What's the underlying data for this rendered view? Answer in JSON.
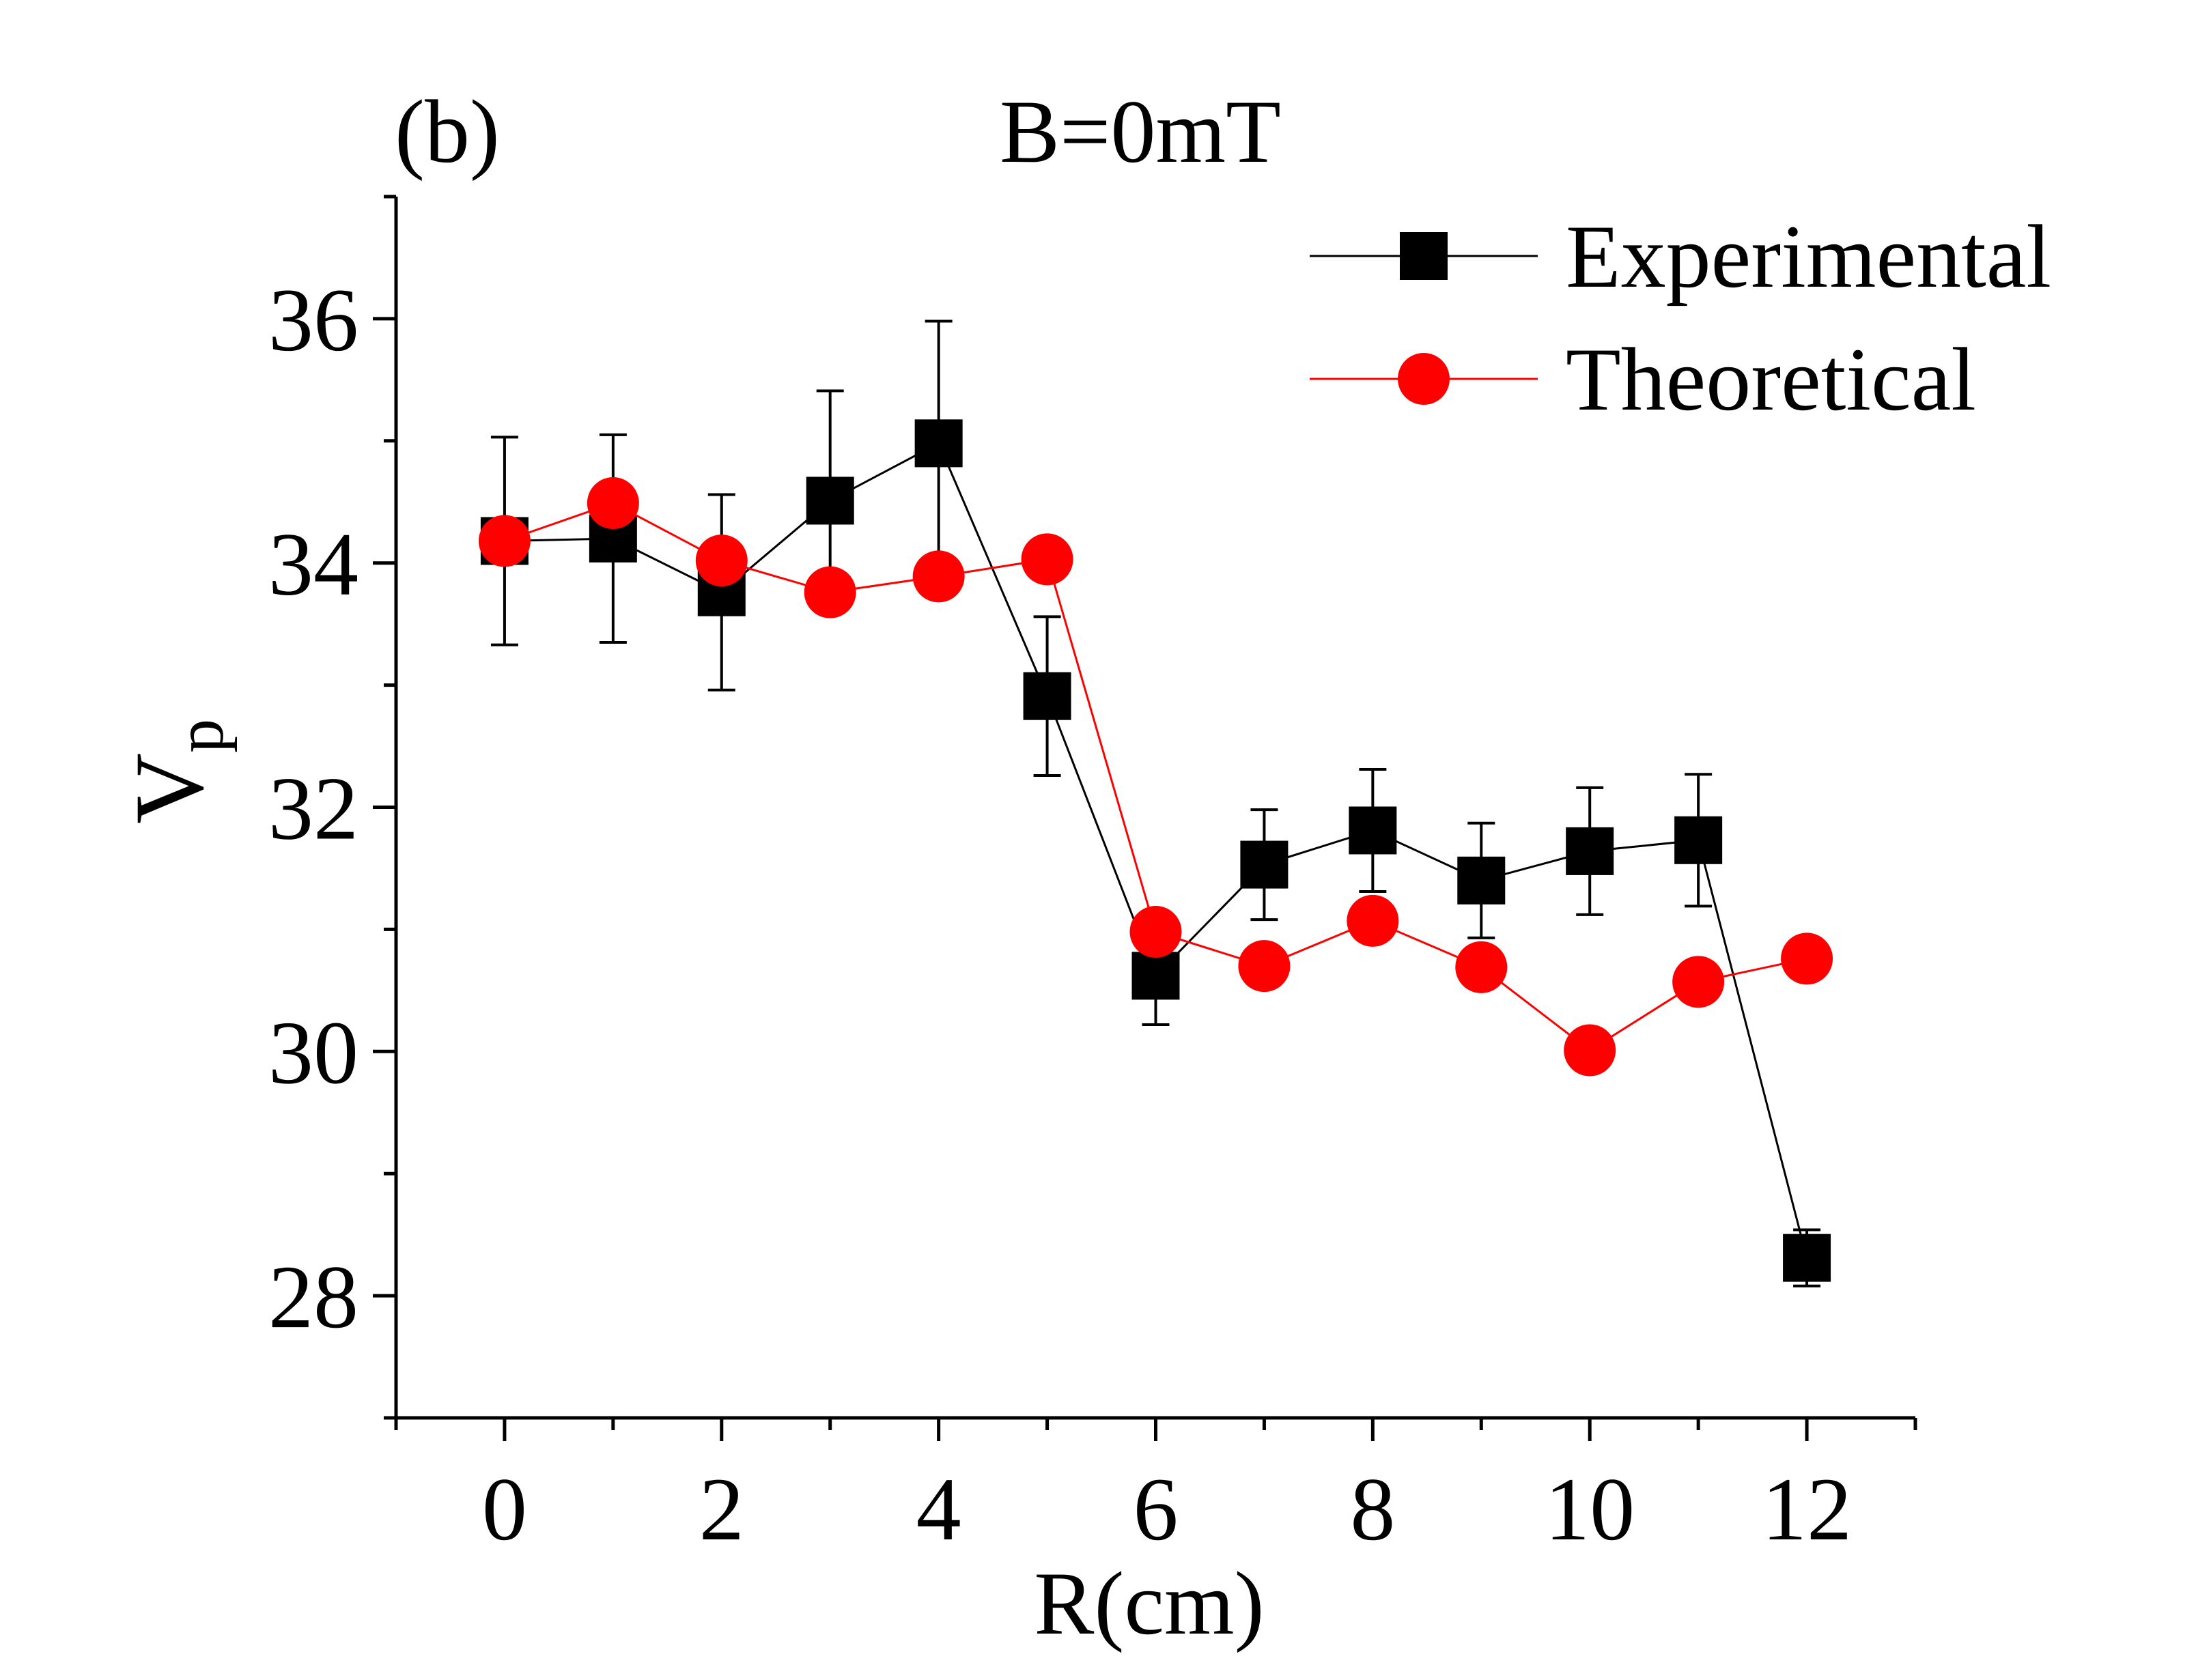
{
  "chart_data": {
    "type": "line",
    "panel_label": "(b)",
    "title": "B=0mT",
    "xlabel": "R(cm)",
    "ylabel": "V",
    "ylabel_subscript": "p",
    "xlim": [
      -1,
      13
    ],
    "ylim": [
      27,
      37
    ],
    "x_ticks": [
      0,
      2,
      4,
      6,
      8,
      10,
      12
    ],
    "x_tick_labels": [
      "0",
      "2",
      "4",
      "6",
      "8",
      "10",
      "12"
    ],
    "y_ticks": [
      28,
      30,
      32,
      34,
      36
    ],
    "y_tick_labels": [
      "28",
      "30",
      "32",
      "34",
      "36"
    ],
    "grid": false,
    "legend_position": "top-right",
    "series": [
      {
        "name": "Experimental",
        "color": "#000000",
        "marker": "square",
        "x": [
          0,
          1,
          2,
          3,
          4,
          5,
          6,
          7,
          8,
          9,
          10,
          11,
          12
        ],
        "y": [
          34.18,
          34.2,
          33.76,
          34.51,
          34.98,
          32.91,
          30.62,
          31.53,
          31.81,
          31.4,
          31.64,
          31.73,
          28.31
        ],
        "err": [
          0.85,
          0.85,
          0.8,
          0.9,
          1.0,
          0.65,
          0.4,
          0.45,
          0.5,
          0.47,
          0.52,
          0.54,
          0.23
        ]
      },
      {
        "name": "Theoretical",
        "color": "#ff0000",
        "marker": "circle",
        "x": [
          0,
          1,
          2,
          3,
          4,
          5,
          6,
          7,
          8,
          9,
          10,
          11,
          12
        ],
        "y": [
          34.18,
          34.49,
          34.02,
          33.76,
          33.89,
          34.03,
          30.98,
          30.7,
          31.07,
          30.69,
          30.01,
          30.57,
          30.76
        ]
      }
    ]
  }
}
